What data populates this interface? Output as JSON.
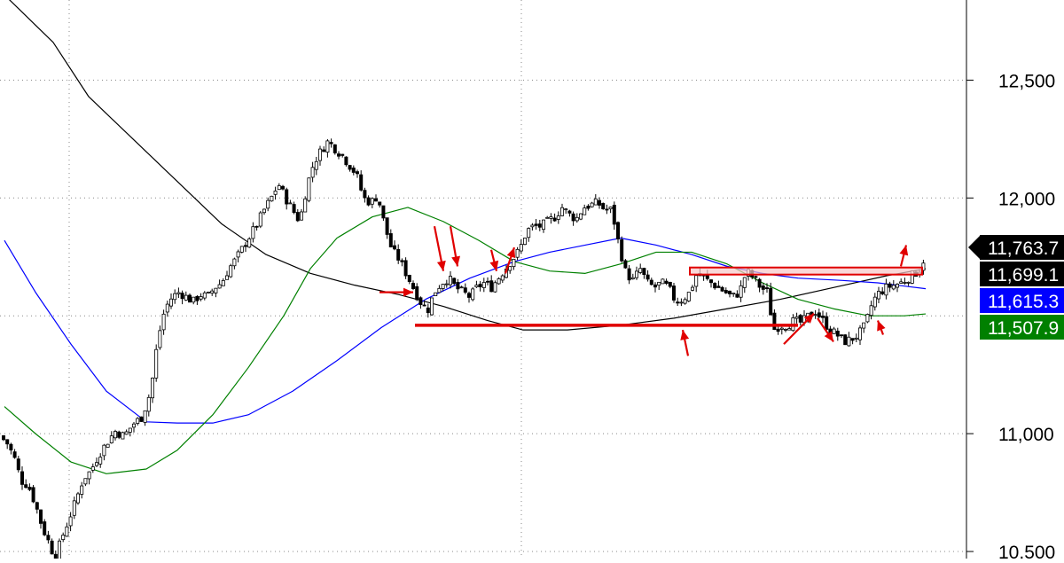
{
  "chart_data": {
    "type": "candlestick",
    "title": "",
    "xlabel": "",
    "ylabel": "",
    "ylim": [
      10470,
      12840
    ],
    "grid": true,
    "y_ticks": [
      {
        "value": 10500,
        "label": "10,500"
      },
      {
        "value": 11000,
        "label": "11,000"
      },
      {
        "value": 12000,
        "label": "12,000"
      },
      {
        "value": 12500,
        "label": "12,500"
      }
    ],
    "last_value_labels": [
      {
        "label": "11,763.7",
        "value": 11763.7,
        "color": "#000000",
        "text_color": "#ffffff",
        "pointer": true
      },
      {
        "label": "11,699.1",
        "value": 11699.1,
        "color": "#000000",
        "text_color": "#ffffff",
        "pointer": false
      },
      {
        "label": "11,615.3",
        "value": 11615.3,
        "color": "#0000ff",
        "text_color": "#ffffff",
        "pointer": false
      },
      {
        "label": "11,507.9",
        "value": 11507.9,
        "color": "#008000",
        "text_color": "#ffffff",
        "pointer": false
      }
    ],
    "price_path": [
      [
        0,
        10990
      ],
      [
        8,
        10960
      ],
      [
        16,
        10900
      ],
      [
        24,
        10800
      ],
      [
        32,
        10780
      ],
      [
        40,
        10700
      ],
      [
        48,
        10600
      ],
      [
        55,
        10540
      ],
      [
        62,
        10470
      ],
      [
        70,
        10560
      ],
      [
        78,
        10640
      ],
      [
        86,
        10720
      ],
      [
        94,
        10810
      ],
      [
        102,
        10840
      ],
      [
        110,
        10900
      ],
      [
        120,
        10960
      ],
      [
        130,
        11010
      ],
      [
        140,
        10990
      ],
      [
        150,
        11040
      ],
      [
        160,
        11070
      ],
      [
        170,
        11180
      ],
      [
        178,
        11400
      ],
      [
        186,
        11530
      ],
      [
        194,
        11580
      ],
      [
        202,
        11600
      ],
      [
        210,
        11580
      ],
      [
        218,
        11560
      ],
      [
        226,
        11590
      ],
      [
        234,
        11580
      ],
      [
        242,
        11620
      ],
      [
        250,
        11640
      ],
      [
        258,
        11700
      ],
      [
        266,
        11740
      ],
      [
        274,
        11790
      ],
      [
        282,
        11840
      ],
      [
        290,
        11890
      ],
      [
        298,
        11950
      ],
      [
        306,
        12000
      ],
      [
        314,
        12060
      ],
      [
        322,
        12000
      ],
      [
        330,
        11950
      ],
      [
        338,
        11900
      ],
      [
        346,
        12050
      ],
      [
        354,
        12150
      ],
      [
        362,
        12200
      ],
      [
        370,
        12240
      ],
      [
        378,
        12210
      ],
      [
        386,
        12180
      ],
      [
        394,
        12140
      ],
      [
        402,
        12100
      ],
      [
        410,
        12000
      ],
      [
        418,
        11980
      ],
      [
        426,
        12010
      ],
      [
        434,
        11880
      ],
      [
        442,
        11780
      ],
      [
        450,
        11740
      ],
      [
        458,
        11680
      ],
      [
        466,
        11620
      ],
      [
        474,
        11560
      ],
      [
        482,
        11520
      ],
      [
        490,
        11600
      ],
      [
        498,
        11640
      ],
      [
        506,
        11660
      ],
      [
        514,
        11620
      ],
      [
        522,
        11600
      ],
      [
        530,
        11580
      ],
      [
        538,
        11620
      ],
      [
        546,
        11640
      ],
      [
        554,
        11620
      ],
      [
        562,
        11660
      ],
      [
        570,
        11700
      ],
      [
        578,
        11740
      ],
      [
        586,
        11780
      ],
      [
        594,
        11860
      ],
      [
        602,
        11880
      ],
      [
        610,
        11880
      ],
      [
        618,
        11900
      ],
      [
        626,
        11920
      ],
      [
        634,
        11960
      ],
      [
        642,
        11930
      ],
      [
        650,
        11910
      ],
      [
        658,
        11960
      ],
      [
        666,
        11970
      ],
      [
        674,
        11980
      ],
      [
        682,
        11950
      ],
      [
        690,
        11950
      ],
      [
        698,
        11800
      ],
      [
        706,
        11680
      ],
      [
        714,
        11650
      ],
      [
        722,
        11700
      ],
      [
        730,
        11640
      ],
      [
        738,
        11620
      ],
      [
        746,
        11640
      ],
      [
        754,
        11620
      ],
      [
        762,
        11560
      ],
      [
        770,
        11570
      ],
      [
        778,
        11600
      ],
      [
        786,
        11680
      ],
      [
        794,
        11660
      ],
      [
        802,
        11640
      ],
      [
        810,
        11620
      ],
      [
        818,
        11600
      ],
      [
        826,
        11580
      ],
      [
        834,
        11600
      ],
      [
        842,
        11690
      ],
      [
        850,
        11660
      ],
      [
        858,
        11620
      ],
      [
        866,
        11600
      ],
      [
        872,
        11440
      ],
      [
        880,
        11460
      ],
      [
        888,
        11460
      ],
      [
        896,
        11480
      ],
      [
        904,
        11470
      ],
      [
        912,
        11500
      ],
      [
        920,
        11520
      ],
      [
        928,
        11480
      ],
      [
        936,
        11440
      ],
      [
        944,
        11420
      ],
      [
        952,
        11390
      ],
      [
        960,
        11400
      ],
      [
        968,
        11420
      ],
      [
        976,
        11460
      ],
      [
        984,
        11560
      ],
      [
        992,
        11600
      ],
      [
        1000,
        11620
      ],
      [
        1008,
        11630
      ],
      [
        1016,
        11640
      ],
      [
        1024,
        11660
      ],
      [
        1032,
        11680
      ],
      [
        1038,
        11700
      ],
      [
        1044,
        11763
      ]
    ],
    "series": [
      {
        "color": "#000000",
        "points": [
          [
            0,
            12880
          ],
          [
            60,
            12660
          ],
          [
            100,
            12430
          ],
          [
            150,
            12250
          ],
          [
            200,
            12070
          ],
          [
            250,
            11890
          ],
          [
            300,
            11760
          ],
          [
            350,
            11680
          ],
          [
            400,
            11630
          ],
          [
            450,
            11590
          ],
          [
            500,
            11540
          ],
          [
            550,
            11480
          ],
          [
            590,
            11440
          ],
          [
            640,
            11440
          ],
          [
            700,
            11460
          ],
          [
            760,
            11490
          ],
          [
            820,
            11530
          ],
          [
            880,
            11570
          ],
          [
            940,
            11620
          ],
          [
            1000,
            11670
          ],
          [
            1044,
            11700
          ]
        ]
      },
      {
        "color": "#0000ff",
        "points": [
          [
            5,
            11820
          ],
          [
            40,
            11600
          ],
          [
            80,
            11380
          ],
          [
            120,
            11180
          ],
          [
            165,
            11050
          ],
          [
            200,
            11045
          ],
          [
            240,
            11045
          ],
          [
            280,
            11080
          ],
          [
            330,
            11180
          ],
          [
            380,
            11310
          ],
          [
            430,
            11450
          ],
          [
            480,
            11570
          ],
          [
            530,
            11660
          ],
          [
            580,
            11730
          ],
          [
            620,
            11770
          ],
          [
            660,
            11800
          ],
          [
            700,
            11830
          ],
          [
            740,
            11800
          ],
          [
            780,
            11760
          ],
          [
            820,
            11710
          ],
          [
            860,
            11680
          ],
          [
            900,
            11660
          ],
          [
            950,
            11650
          ],
          [
            990,
            11640
          ],
          [
            1044,
            11615
          ]
        ]
      },
      {
        "color": "#008000",
        "points": [
          [
            5,
            11115
          ],
          [
            40,
            11000
          ],
          [
            80,
            10880
          ],
          [
            120,
            10830
          ],
          [
            165,
            10850
          ],
          [
            200,
            10930
          ],
          [
            240,
            11080
          ],
          [
            280,
            11280
          ],
          [
            320,
            11500
          ],
          [
            350,
            11700
          ],
          [
            380,
            11830
          ],
          [
            420,
            11920
          ],
          [
            460,
            11960
          ],
          [
            500,
            11900
          ],
          [
            540,
            11820
          ],
          [
            580,
            11730
          ],
          [
            620,
            11690
          ],
          [
            660,
            11680
          ],
          [
            700,
            11720
          ],
          [
            740,
            11770
          ],
          [
            780,
            11770
          ],
          [
            820,
            11720
          ],
          [
            860,
            11640
          ],
          [
            900,
            11570
          ],
          [
            940,
            11530
          ],
          [
            980,
            11500
          ],
          [
            1020,
            11500
          ],
          [
            1044,
            11508
          ]
        ]
      }
    ],
    "annotations": {
      "support_line": {
        "color": "#e00000",
        "value": 11460,
        "x1": 468,
        "x2": 900
      },
      "resistance_zone": {
        "color": "#e00000",
        "fill": "#f7c6c6",
        "top": 11705,
        "bottom": 11675,
        "x1": 778,
        "x2": 1040
      },
      "arrows": [
        {
          "from": [
            428,
            11600
          ],
          "to": [
            466,
            11600
          ]
        },
        {
          "from": [
            490,
            11880
          ],
          "to": [
            500,
            11690
          ]
        },
        {
          "from": [
            508,
            11880
          ],
          "to": [
            516,
            11710
          ]
        },
        {
          "from": [
            554,
            11780
          ],
          "to": [
            560,
            11690
          ]
        },
        {
          "from": [
            570,
            11680
          ],
          "to": [
            580,
            11790
          ]
        },
        {
          "from": [
            776,
            11330
          ],
          "to": [
            770,
            11440
          ]
        },
        {
          "from": [
            884,
            11380
          ],
          "to": [
            918,
            11510
          ]
        },
        {
          "from": [
            922,
            11490
          ],
          "to": [
            940,
            11390
          ]
        },
        {
          "from": [
            996,
            11420
          ],
          "to": [
            990,
            11480
          ]
        },
        {
          "from": [
            1016,
            11710
          ],
          "to": [
            1022,
            11800
          ]
        }
      ]
    }
  }
}
